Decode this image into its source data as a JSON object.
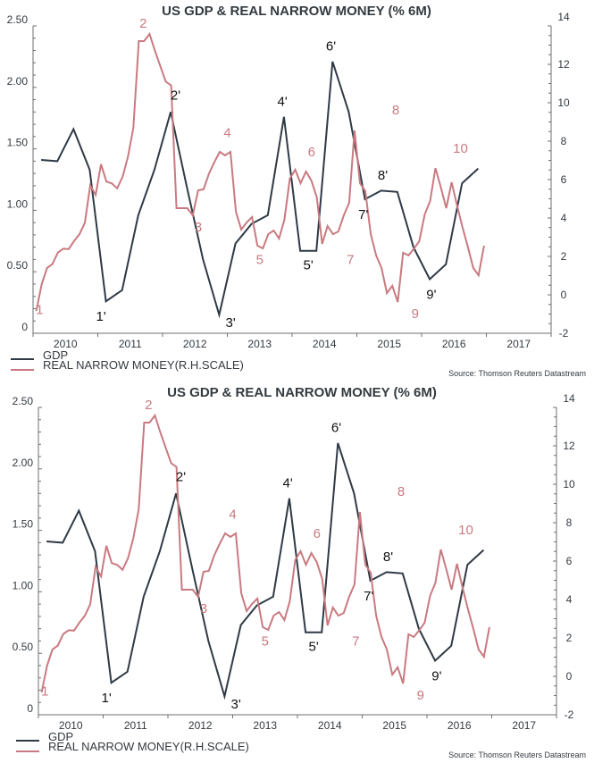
{
  "chart_data": [
    {
      "type": "line",
      "title": "US GDP & REAL NARROW MONEY (% 6M)",
      "xlabel": "",
      "ylabel": "",
      "x_tick_labels": [
        "2010",
        "2011",
        "2012",
        "2013",
        "2014",
        "2015",
        "2016",
        "2017"
      ],
      "xlim": [
        2010,
        2018
      ],
      "left_axis": {
        "ylim": [
          0,
          2.5
        ],
        "tick_labels": [
          "0",
          "0.50",
          "1.00",
          "1.50",
          "2.00",
          "2.50"
        ],
        "ticks": [
          0,
          0.5,
          1,
          1.5,
          2,
          2.5
        ]
      },
      "right_axis": {
        "ylim": [
          -2,
          14
        ],
        "tick_labels": [
          "-2",
          "0",
          "2",
          "4",
          "6",
          "8",
          "10",
          "12",
          "14"
        ],
        "ticks": [
          -2,
          0,
          2,
          4,
          6,
          8,
          10,
          12,
          14
        ]
      },
      "grid": false,
      "legend_position": "bottom-left",
      "source": "Source: Thomson Reuters Datastream",
      "series": [
        {
          "name": "GDP",
          "axis": "left",
          "color": "#2f3a45",
          "x_start": 2010.125,
          "x_step": 0.25,
          "values": [
            1.41,
            1.4,
            1.66,
            1.33,
            0.26,
            0.35,
            0.96,
            1.33,
            1.8,
            1.19,
            0.6,
            0.15,
            0.73,
            0.89,
            0.96,
            1.76,
            0.67,
            0.67,
            2.21,
            1.8,
            1.09,
            1.16,
            1.15,
            0.7,
            0.44,
            0.56,
            1.22,
            1.34
          ]
        },
        {
          "name": "REAL NARROW MONEY(R.H.SCALE)",
          "axis": "right",
          "color": "#c97a80",
          "x_start": 2010.05,
          "x_step": 0.0833,
          "values": [
            -0.84,
            0.56,
            1.4,
            1.6,
            2.2,
            2.4,
            2.38,
            2.8,
            3.15,
            3.75,
            5.7,
            5.2,
            6.8,
            5.9,
            5.8,
            5.55,
            6.15,
            7.2,
            8.7,
            13.21,
            13.21,
            13.58,
            12.7,
            11.9,
            11.1,
            10.9,
            4.51,
            4.51,
            4.51,
            4.14,
            5.44,
            5.49,
            6.3,
            6.9,
            7.44,
            7.26,
            7.44,
            4.33,
            3.4,
            3.77,
            4.05,
            2.56,
            2.42,
            3.16,
            3.35,
            2.93,
            3.91,
            6.05,
            6.51,
            5.81,
            6.42,
            5.95,
            5.07,
            2.65,
            3.58,
            3.16,
            3.3,
            4.14,
            4.79,
            8.56,
            5.81,
            5.4,
            3.16,
            2.05,
            1.4,
            0.09,
            0.47,
            -0.37,
            2.19,
            2.05,
            2.4,
            2.79,
            4.19,
            4.88,
            6.6,
            5.58,
            4.51,
            5.86,
            4.65,
            3.53,
            2.5,
            1.4,
            1.02,
            2.56
          ]
        }
      ],
      "annotations": {
        "money": [
          {
            "label": "1",
            "x": 2010.1,
            "y": -1.0
          },
          {
            "label": "2",
            "x": 2011.7,
            "y": 13.9
          },
          {
            "label": "3",
            "x": 2012.55,
            "y": 3.3
          },
          {
            "label": "4",
            "x": 2013.0,
            "y": 8.2
          },
          {
            "label": "5",
            "x": 2013.5,
            "y": 1.6
          },
          {
            "label": "6",
            "x": 2014.3,
            "y": 7.2
          },
          {
            "label": "7",
            "x": 2014.9,
            "y": 1.6
          },
          {
            "label": "8",
            "x": 2015.6,
            "y": 9.4
          },
          {
            "label": "9",
            "x": 2015.9,
            "y": -1.2
          },
          {
            "label": "10",
            "x": 2016.6,
            "y": 7.4
          }
        ],
        "gdp": [
          {
            "label": "1'",
            "x": 2011.05,
            "y": 0.1
          },
          {
            "label": "2'",
            "x": 2012.2,
            "y": 1.9
          },
          {
            "label": "3'",
            "x": 2013.05,
            "y": 0.05
          },
          {
            "label": "4'",
            "x": 2013.85,
            "y": 1.85
          },
          {
            "label": "5'",
            "x": 2014.25,
            "y": 0.52
          },
          {
            "label": "6'",
            "x": 2014.6,
            "y": 2.3
          },
          {
            "label": "7'",
            "x": 2015.1,
            "y": 0.93
          },
          {
            "label": "8'",
            "x": 2015.4,
            "y": 1.25
          },
          {
            "label": "9'",
            "x": 2016.15,
            "y": 0.28
          }
        ]
      }
    }
  ],
  "panels": [
    {
      "id": "top"
    },
    {
      "id": "bottom"
    }
  ]
}
